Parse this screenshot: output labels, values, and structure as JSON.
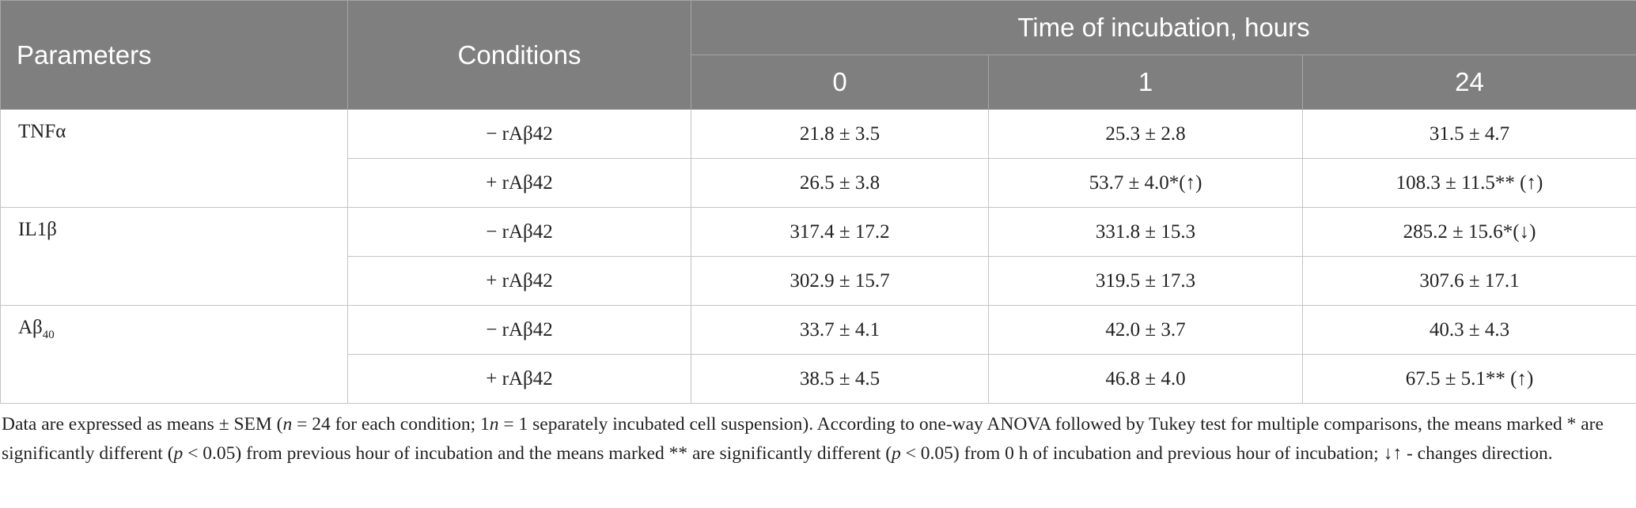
{
  "table": {
    "header": {
      "parameters": "Parameters",
      "conditions": "Conditions",
      "time": "Time of incubation, hours",
      "times": [
        "0",
        "1",
        "24"
      ]
    },
    "groups": [
      {
        "parameter": "TNFα",
        "rows": [
          {
            "condition": "− rAβ42",
            "values": [
              "21.8 ± 3.5",
              "25.3 ± 2.8",
              "31.5 ± 4.7"
            ]
          },
          {
            "condition": "+ rAβ42",
            "values": [
              "26.5 ± 3.8",
              "53.7 ± 4.0*(↑)",
              "108.3 ± 11.5** (↑)"
            ]
          }
        ]
      },
      {
        "parameter": "IL1β",
        "rows": [
          {
            "condition": "− rAβ42",
            "values": [
              "317.4 ± 17.2",
              "331.8 ± 15.3",
              "285.2 ± 15.6*(↓)"
            ]
          },
          {
            "condition": "+ rAβ42",
            "values": [
              "302.9 ± 15.7",
              "319.5 ± 17.3",
              "307.6 ± 17.1"
            ]
          }
        ]
      },
      {
        "parameter": {
          "text": "Aβ",
          "sub": "40"
        },
        "rows": [
          {
            "condition": "− rAβ42",
            "values": [
              "33.7 ± 4.1",
              "42.0 ± 3.7",
              "40.3 ± 4.3"
            ]
          },
          {
            "condition": "+ rAβ42",
            "values": [
              "38.5 ± 4.5",
              "46.8 ± 4.0",
              "67.5 ± 5.1** (↑)"
            ]
          }
        ]
      }
    ]
  },
  "footnote": [
    {
      "text": "Data are expressed as means ± SEM ("
    },
    {
      "text": "n",
      "italic": true
    },
    {
      "text": " = 24 for each condition; 1"
    },
    {
      "text": "n",
      "italic": true
    },
    {
      "text": " = 1 separately incubated cell suspension). According to one-way ANOVA followed by Tukey test for multiple comparisons, the means marked * are significantly different ("
    },
    {
      "text": "p",
      "italic": true
    },
    {
      "text": " < 0.05) from previous hour of incubation and the means marked ** are significantly different ("
    },
    {
      "text": "p",
      "italic": true
    },
    {
      "text": " < 0.05) from 0 h of incubation and previous hour of incubation; ↓↑ - changes direction."
    }
  ]
}
